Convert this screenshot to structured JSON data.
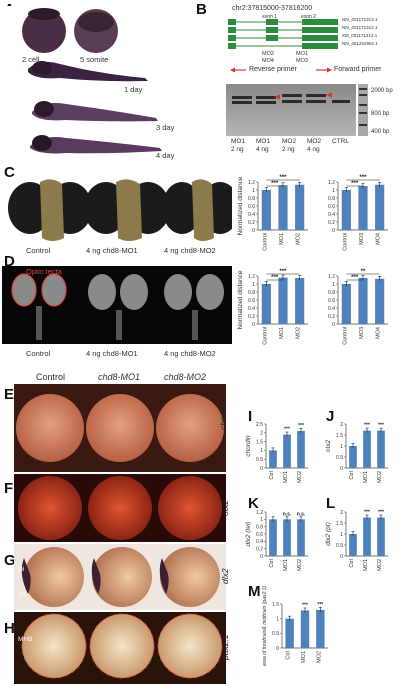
{
  "panel_labels": {
    "A": "A",
    "B": "B",
    "C": "C",
    "D": "D",
    "E": "E",
    "F": "F",
    "G": "G",
    "H": "H",
    "I": "I",
    "J": "J",
    "K": "K",
    "L": "L",
    "M": "M"
  },
  "panelA": {
    "stages": [
      "2 cell",
      "5 somite",
      "1 day",
      "3 day",
      "4 day"
    ]
  },
  "panelB": {
    "locus": "chr2:37815000-37816200",
    "exon_labels": [
      "exon 1",
      "exon 2"
    ],
    "transcripts": [
      "NM_001171313.1",
      "NM_001171312.1",
      "XM_001171313.1",
      "NM_001262952.1"
    ],
    "mo_labels": [
      "MO2",
      "MO4",
      "MO1",
      "MO3"
    ],
    "primers": [
      "Reverse primer",
      "Forward primer"
    ],
    "ladder": [
      "2000 bp",
      "800 bp",
      "400 bp"
    ],
    "lanes": [
      {
        "name": "MO1",
        "dose": "2 ng"
      },
      {
        "name": "MO1",
        "dose": "4 ng"
      },
      {
        "name": "MO2",
        "dose": "2 ng"
      },
      {
        "name": "MO2",
        "dose": "4 ng"
      },
      {
        "name": "CTRL",
        "dose": ""
      }
    ]
  },
  "panelC": {
    "captions": [
      "Control",
      "4 ng chd8-MO1",
      "4 ng chd8-MO2"
    ],
    "ylabel": "Normalized distance"
  },
  "panelD": {
    "captions": [
      "Control",
      "4 ng chd8-MO1",
      "4 ng chd8-MO2"
    ],
    "optic_label": "Optic tecta",
    "ylabel": "Normalized distance"
  },
  "panelE_H": {
    "columns": [
      "Control",
      "chd8-MO1",
      "chd8-MO2"
    ],
    "genes": [
      "chordin",
      "otx2",
      "dlx2",
      "pax2.1"
    ],
    "annotations": [
      "tel",
      "pt",
      "MHB"
    ]
  },
  "chart_data": [
    {
      "panel": "C",
      "type": "bar",
      "categories": [
        "Control",
        "MO1",
        "MO2"
      ],
      "values": [
        1.0,
        1.12,
        1.13
      ],
      "ylim": [
        0,
        1.2
      ],
      "yticks": [
        "0",
        "0.2",
        "0.4",
        "0.6",
        "0.8",
        "1",
        "1.2"
      ],
      "ylabel": "Normalized distance",
      "significance": [
        "***",
        "***"
      ]
    },
    {
      "panel": "C",
      "type": "bar",
      "categories": [
        "Control",
        "MO3",
        "MO4"
      ],
      "values": [
        1.0,
        1.1,
        1.13
      ],
      "ylim": [
        0,
        1.2
      ],
      "yticks": [
        "0",
        "0.2",
        "0.4",
        "0.6",
        "0.8",
        "1",
        "1.2"
      ],
      "ylabel": "",
      "significance": [
        "***",
        "***"
      ]
    },
    {
      "panel": "D",
      "type": "bar",
      "categories": [
        "Control",
        "MO1",
        "MO2"
      ],
      "values": [
        1.0,
        1.16,
        1.15
      ],
      "ylim": [
        0,
        1.2
      ],
      "yticks": [
        "0",
        "0.2",
        "0.4",
        "0.6",
        "0.8",
        "1",
        "1.2"
      ],
      "ylabel": "Normalized distance",
      "significance": [
        "***",
        "***"
      ]
    },
    {
      "panel": "D",
      "type": "bar",
      "categories": [
        "Control",
        "MO3",
        "MO4"
      ],
      "values": [
        1.0,
        1.15,
        1.13
      ],
      "ylim": [
        0,
        1.2
      ],
      "yticks": [
        "0",
        "0.2",
        "0.4",
        "0.6",
        "0.8",
        "1",
        "1.2"
      ],
      "ylabel": "",
      "significance": [
        "***",
        "**"
      ]
    },
    {
      "panel": "I",
      "type": "bar",
      "categories": [
        "Ctrl",
        "MO1",
        "MO2"
      ],
      "values": [
        1.0,
        1.9,
        2.1
      ],
      "ylim": [
        0,
        2.5
      ],
      "yticks": [
        "0",
        "0.5",
        "1",
        "1.5",
        "2",
        "2.5"
      ],
      "ylabel": "chordin",
      "significance": [
        "***",
        "***"
      ]
    },
    {
      "panel": "J",
      "type": "bar",
      "categories": [
        "Ctrl",
        "MO1",
        "MO2"
      ],
      "values": [
        1.0,
        1.7,
        1.7
      ],
      "ylim": [
        0,
        2
      ],
      "yticks": [
        "0",
        "0.5",
        "1",
        "1.5",
        "2"
      ],
      "ylabel": "otx2",
      "significance": [
        "***",
        "***"
      ]
    },
    {
      "panel": "K",
      "type": "bar",
      "categories": [
        "Ctrl",
        "MO1",
        "MO2"
      ],
      "values": [
        1.0,
        1.0,
        1.0
      ],
      "ylim": [
        0,
        1.2
      ],
      "yticks": [
        "0",
        "0.2",
        "0.4",
        "0.6",
        "0.8",
        "1",
        "1.2"
      ],
      "ylabel": "dlx2 (tel)",
      "significance": [
        "n.s.",
        "n.s."
      ]
    },
    {
      "panel": "L",
      "type": "bar",
      "categories": [
        "Ctrl",
        "MO1",
        "MO2"
      ],
      "values": [
        1.0,
        1.75,
        1.75
      ],
      "ylim": [
        0,
        2
      ],
      "yticks": [
        "0",
        "0.5",
        "1",
        "1.5",
        "2"
      ],
      "ylabel": "dlx2 (pt)",
      "significance": [
        "***",
        "***"
      ]
    },
    {
      "panel": "M",
      "type": "bar",
      "categories": [
        "Ctrl",
        "MO1",
        "MO2"
      ],
      "values": [
        1.0,
        1.28,
        1.3
      ],
      "ylim": [
        0,
        1.5
      ],
      "yticks": [
        "0",
        "0.5",
        "1",
        "1.5"
      ],
      "ylabel": "area of forebrain& midbrain (pax2.1)",
      "significance": [
        "***",
        "***"
      ]
    }
  ],
  "colors": {
    "bar": "#4f81bd",
    "bar_ctrl": "#4f81bd",
    "gel": "#2b2b2b",
    "exon": "#2e8b3e",
    "primer": "#d9342b",
    "optic": "#e0403a"
  }
}
